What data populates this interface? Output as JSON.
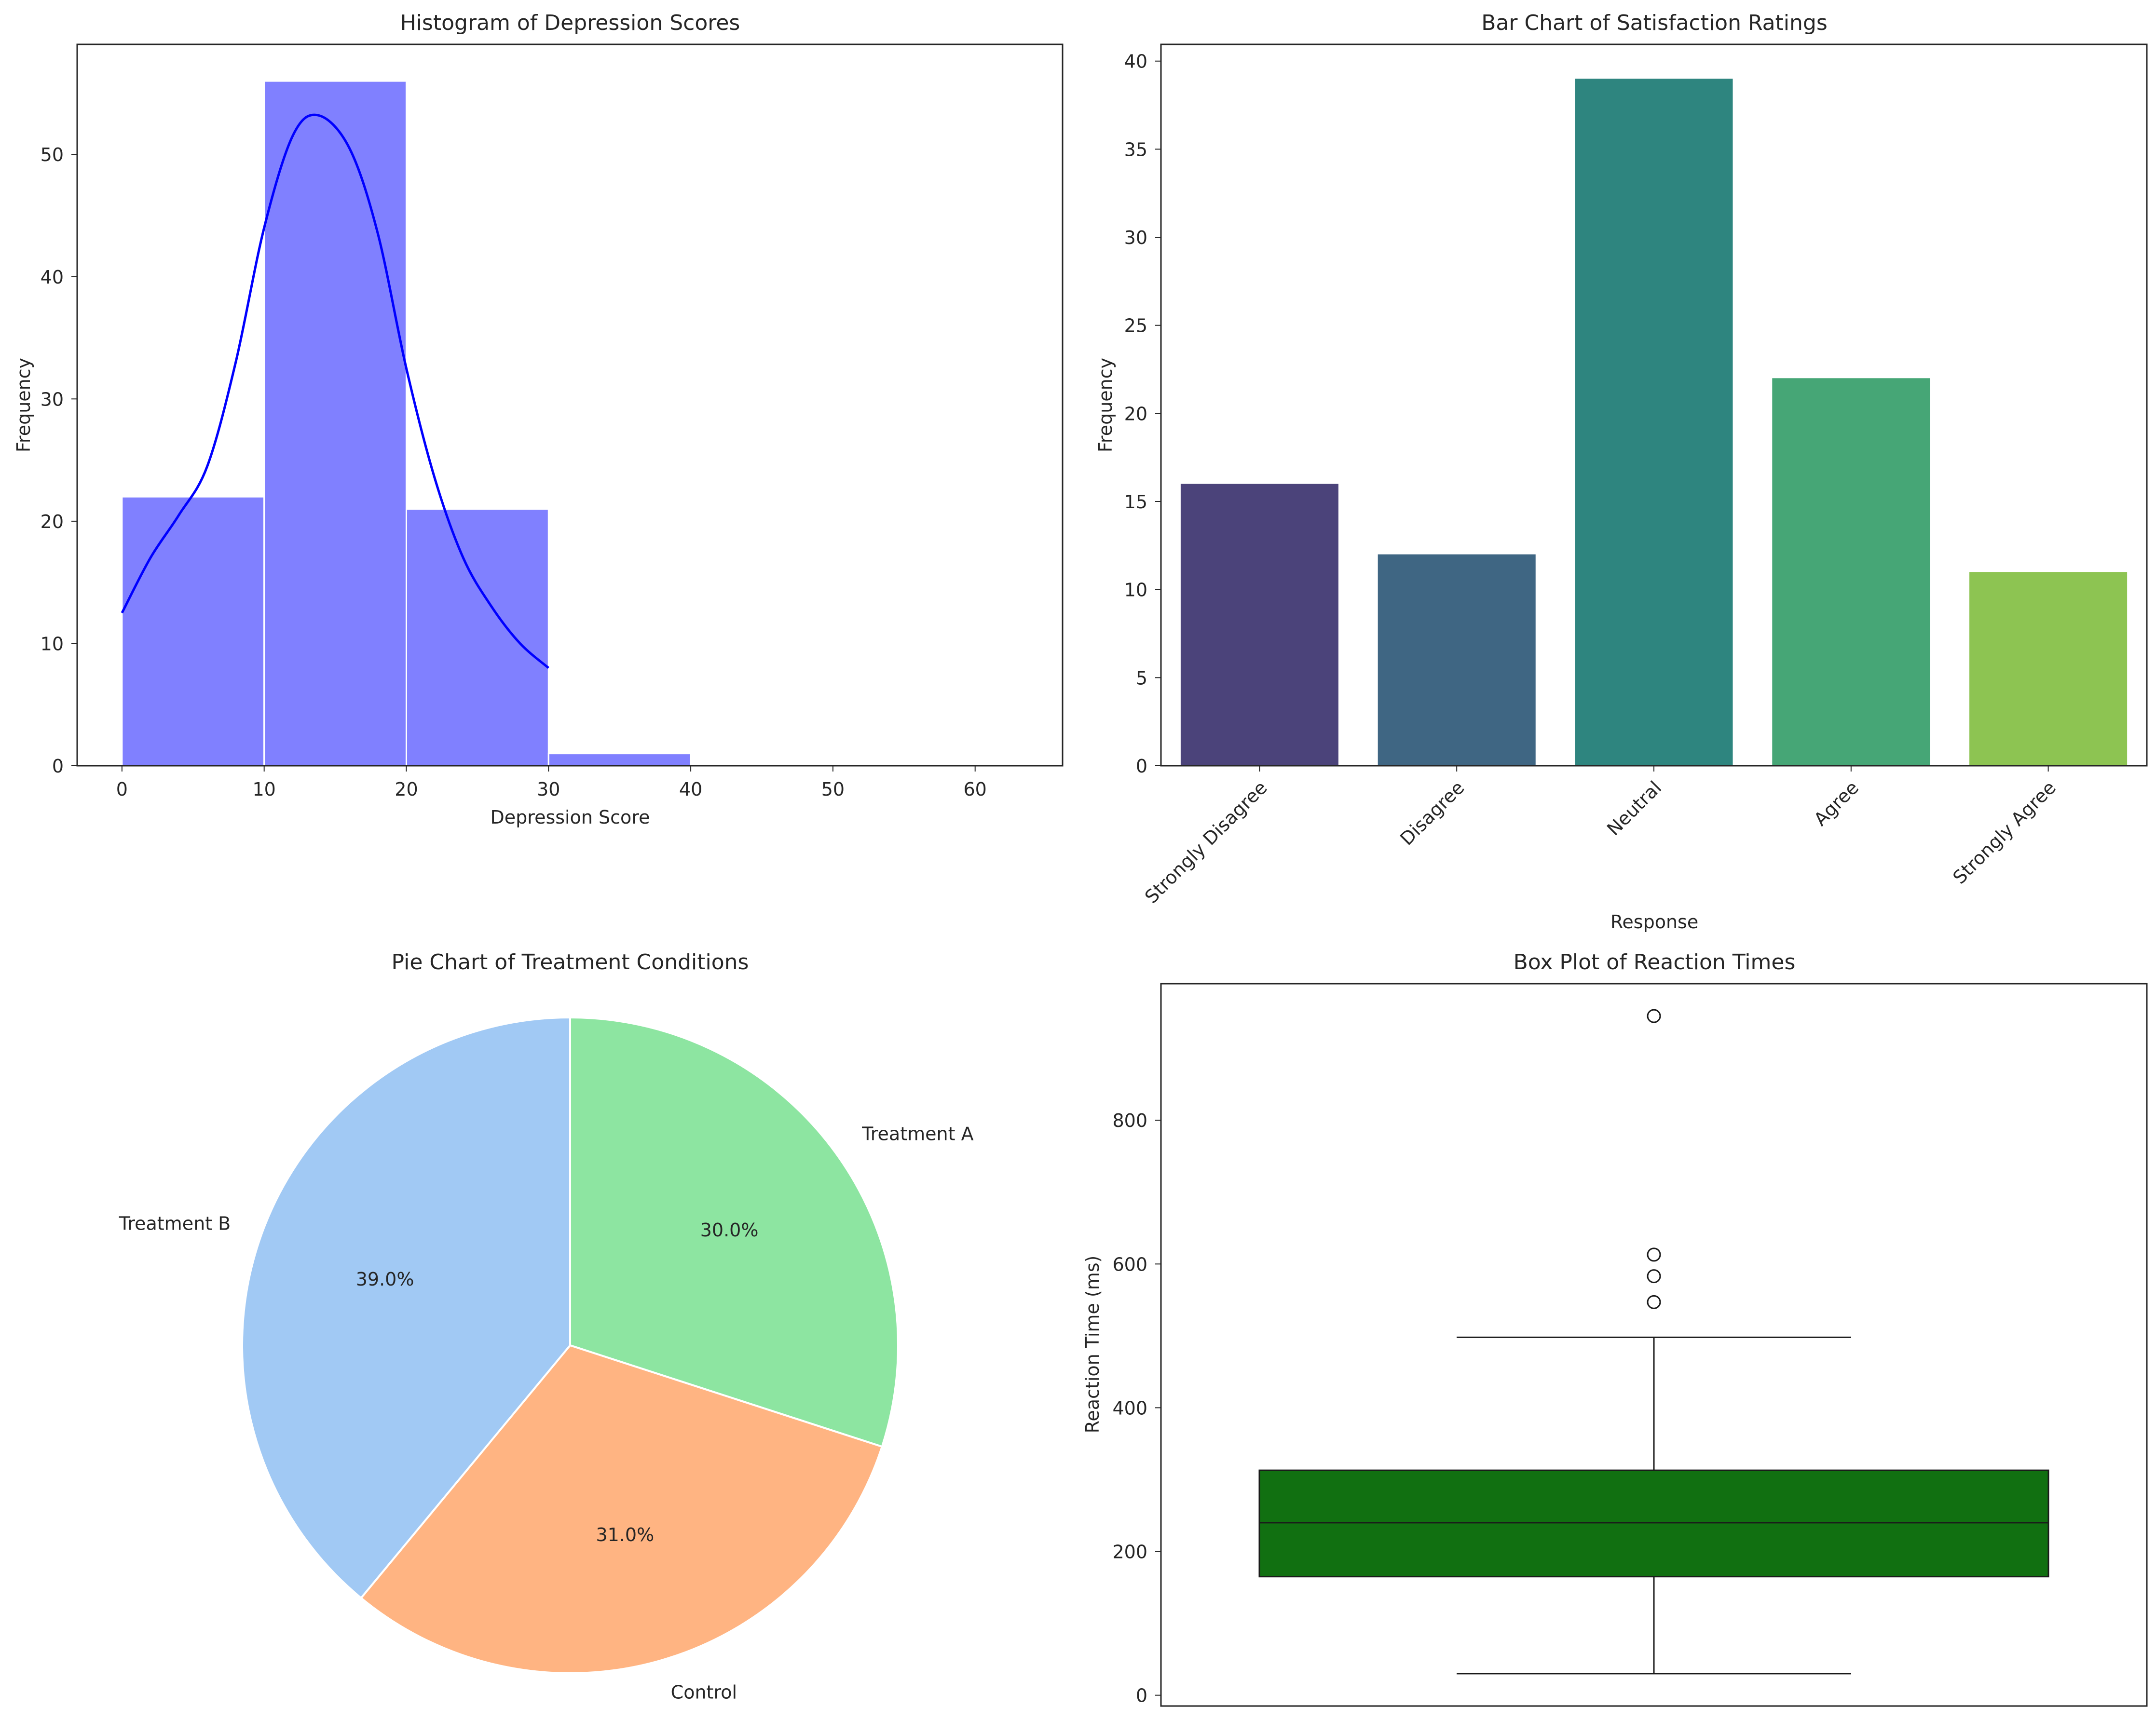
{
  "chart_data": [
    {
      "type": "histogram",
      "title": "Histogram of Depression Scores",
      "xlabel": "Depression Score",
      "ylabel": "Frequency",
      "xlim": [
        -3.15,
        66.15
      ],
      "ylim": [
        0,
        59
      ],
      "xticks": [
        0,
        10,
        20,
        30,
        40,
        50,
        60
      ],
      "yticks": [
        0,
        10,
        20,
        30,
        40,
        50
      ],
      "bins": [
        {
          "x0": 0,
          "x1": 10,
          "count": 22
        },
        {
          "x0": 10,
          "x1": 20,
          "count": 56
        },
        {
          "x0": 20,
          "x1": 30,
          "count": 21
        },
        {
          "x0": 30,
          "x1": 40,
          "count": 1
        }
      ],
      "kde": {
        "x": [
          0,
          2,
          4,
          6,
          8,
          10,
          12,
          13.8,
          16,
          18,
          20,
          22,
          24,
          26,
          28,
          30
        ],
        "y": [
          12.5,
          17,
          20.5,
          24.5,
          33,
          44,
          51.5,
          53.2,
          50.5,
          43.5,
          32.5,
          23.5,
          17,
          13,
          10,
          8
        ]
      },
      "bar_color": "#8080ff",
      "kde_color": "#0000ff",
      "grid": false
    },
    {
      "type": "bar",
      "title": "Bar Chart of Satisfaction Ratings",
      "xlabel": "Response",
      "ylabel": "Frequency",
      "categories": [
        "Strongly Disagree",
        "Disagree",
        "Neutral",
        "Agree",
        "Strongly Agree"
      ],
      "values": [
        16,
        12,
        39,
        22,
        11
      ],
      "colors": [
        "#4b437a",
        "#3f6683",
        "#2e857f",
        "#46a676",
        "#8dc452"
      ],
      "ylim": [
        0,
        40.95
      ],
      "yticks": [
        0,
        5,
        10,
        15,
        20,
        25,
        30,
        35,
        40
      ],
      "grid": false
    },
    {
      "type": "pie",
      "title": "Pie Chart of Treatment Conditions",
      "slices": [
        {
          "label": "Treatment A",
          "value": 30.0,
          "pct_label": "30.0%",
          "color": "#8de5a1"
        },
        {
          "label": "Control",
          "value": 31.0,
          "pct_label": "31.0%",
          "color": "#ffb482"
        },
        {
          "label": "Treatment B",
          "value": 39.0,
          "pct_label": "39.0%",
          "color": "#a1c9f4"
        }
      ],
      "start_angle_deg": 90,
      "direction": "clockwise"
    },
    {
      "type": "box",
      "title": "Box Plot of Reaction Times",
      "ylabel": "Reaction Time (ms)",
      "ylim": [
        -15,
        990
      ],
      "yticks": [
        0,
        200,
        400,
        600,
        800
      ],
      "whisker_low": 30,
      "q1": 165,
      "median": 240,
      "q3": 313,
      "whisker_high": 498,
      "outliers": [
        547,
        583,
        613,
        945
      ],
      "box_color": "#117011"
    }
  ]
}
